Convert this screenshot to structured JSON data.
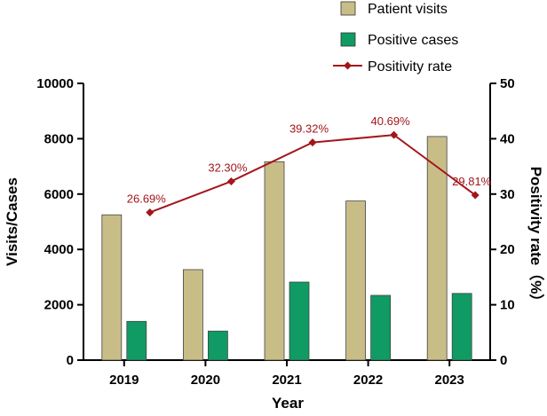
{
  "chart_data": {
    "type": "bar",
    "categories": [
      "2019",
      "2020",
      "2021",
      "2022",
      "2023"
    ],
    "xlabel": "Year",
    "ylabel": "Visits/Cases",
    "y2label": "Positivity rate（%）",
    "ylim": [
      0,
      10000
    ],
    "y2lim": [
      0,
      50
    ],
    "yticks": [
      "0",
      "2000",
      "4000",
      "6000",
      "8000",
      "10000"
    ],
    "y2ticks": [
      "0",
      "10",
      "20",
      "30",
      "40",
      "50"
    ],
    "series": [
      {
        "name": "Patient visits",
        "type": "bar",
        "axis": "left",
        "color": "#c8bd87",
        "values": [
          5250,
          3270,
          7170,
          5750,
          8080
        ]
      },
      {
        "name": "Positive cases",
        "type": "bar",
        "axis": "left",
        "color": "#0f9b63",
        "values": [
          1400,
          1050,
          2820,
          2340,
          2410
        ]
      },
      {
        "name": "Positivity rate",
        "type": "line",
        "axis": "right",
        "color": "#a3161b",
        "values": [
          26.69,
          32.3,
          39.32,
          40.69,
          29.81
        ]
      }
    ],
    "rate_labels": [
      "26.69%",
      "32.30%",
      "39.32%",
      "40.69%",
      "29.81%"
    ],
    "legend": [
      "Patient visits",
      "Positive cases",
      "Positivity rate"
    ]
  }
}
